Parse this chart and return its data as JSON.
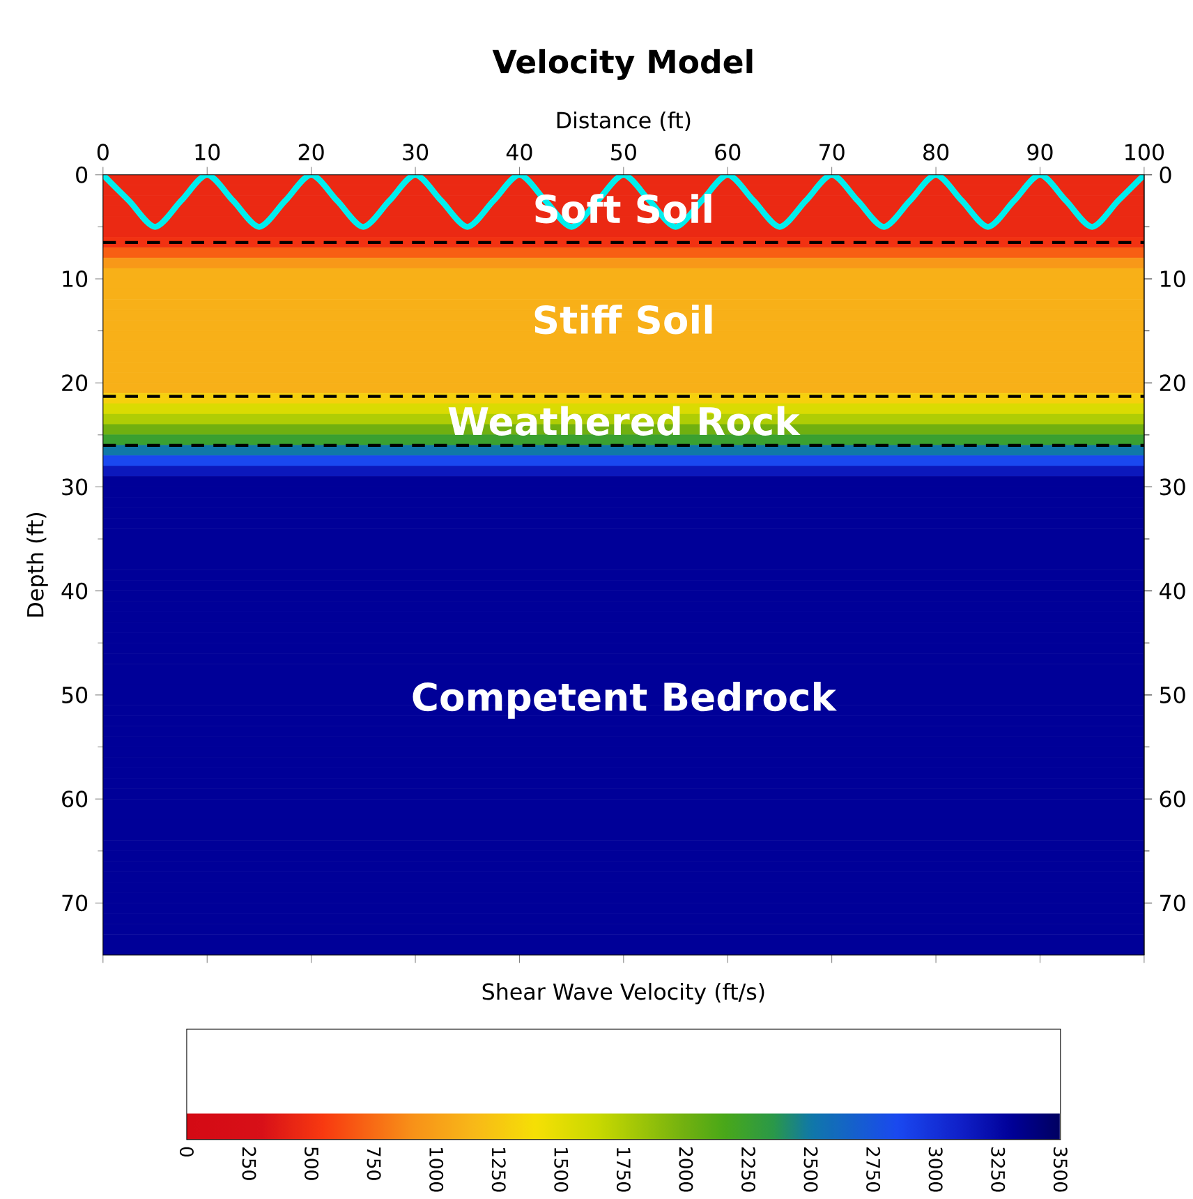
{
  "chart_data": {
    "type": "heatmap",
    "title": "Velocity Model",
    "xlabel": "Distance (ft)",
    "ylabel": "Depth (ft)",
    "clabel": "Shear Wave Velocity (ft/s)",
    "xlim": [
      0,
      100
    ],
    "xticks": [
      0,
      10,
      20,
      30,
      40,
      50,
      60,
      70,
      80,
      90,
      100
    ],
    "ylim": [
      75,
      0
    ],
    "yticks": [
      0,
      10,
      20,
      30,
      40,
      50,
      60,
      70
    ],
    "y2lim": [
      75,
      0
    ],
    "y2ticks": [
      0,
      10,
      20,
      30,
      40,
      50,
      60,
      70
    ],
    "clim": [
      0,
      3500
    ],
    "cticks": [
      0,
      250,
      500,
      750,
      1000,
      1250,
      1500,
      1750,
      2000,
      2250,
      2500,
      2750,
      3000,
      3250,
      3500
    ],
    "cells": [
      [
        450
      ],
      [
        450
      ],
      [
        450
      ],
      [
        450
      ],
      [
        450
      ],
      [
        450
      ],
      [
        500
      ],
      [
        700
      ],
      [
        950
      ],
      [
        1100
      ],
      [
        1100
      ],
      [
        1100
      ],
      [
        1100
      ],
      [
        1100
      ],
      [
        1100
      ],
      [
        1100
      ],
      [
        1100
      ],
      [
        1100
      ],
      [
        1100
      ],
      [
        1100
      ],
      [
        1100
      ],
      [
        1300
      ],
      [
        1550
      ],
      [
        1750
      ],
      [
        2000
      ],
      [
        2250
      ],
      [
        2500
      ],
      [
        2850
      ],
      [
        3150
      ],
      [
        3300
      ],
      [
        3300
      ],
      [
        3300
      ],
      [
        3300
      ],
      [
        3300
      ],
      [
        3300
      ],
      [
        3300
      ],
      [
        3300
      ],
      [
        3300
      ],
      [
        3300
      ],
      [
        3300
      ],
      [
        3300
      ],
      [
        3300
      ],
      [
        3300
      ],
      [
        3300
      ],
      [
        3300
      ],
      [
        3300
      ],
      [
        3300
      ],
      [
        3300
      ],
      [
        3300
      ],
      [
        3300
      ],
      [
        3300
      ],
      [
        3300
      ],
      [
        3300
      ],
      [
        3300
      ],
      [
        3300
      ],
      [
        3300
      ],
      [
        3300
      ],
      [
        3300
      ],
      [
        3300
      ],
      [
        3300
      ],
      [
        3300
      ],
      [
        3300
      ],
      [
        3300
      ],
      [
        3300
      ],
      [
        3300
      ],
      [
        3300
      ],
      [
        3300
      ],
      [
        3300
      ],
      [
        3300
      ],
      [
        3300
      ],
      [
        3300
      ],
      [
        3300
      ],
      [
        3300
      ],
      [
        3300
      ],
      [
        3300
      ]
    ],
    "series": [
      {
        "type": "line",
        "color": "#00eeee",
        "x": [
          0,
          2.5,
          5,
          7.5,
          10,
          12.5,
          15,
          17.5,
          20,
          22.5,
          25,
          27.5,
          30,
          32.5,
          35,
          37.5,
          40,
          42.5,
          45,
          47.5,
          50,
          52.5,
          55,
          57.5,
          60,
          62.5,
          65,
          67.5,
          70,
          72.5,
          75,
          77.5,
          80,
          82.5,
          85,
          87.5,
          90,
          92.5,
          95,
          97.5,
          100
        ],
        "values": [
          0,
          2.5,
          5,
          2.5,
          0,
          2.5,
          5,
          2.5,
          0,
          2.5,
          5,
          2.5,
          0,
          2.5,
          5,
          2.5,
          0,
          2.5,
          5,
          2.5,
          0,
          2.5,
          5,
          2.5,
          0,
          2.5,
          5,
          2.5,
          0,
          2.5,
          5,
          2.5,
          0,
          2.5,
          5,
          2.5,
          0,
          2.5,
          5,
          2.5,
          0
        ]
      }
    ],
    "ref_lines": [
      {
        "axis": "y",
        "value": 6.5,
        "color": "#000000",
        "line_style": "dashed"
      },
      {
        "axis": "y",
        "value": 21.3,
        "color": "#000000",
        "line_style": "dashed"
      },
      {
        "axis": "y",
        "value": 26,
        "color": "#000000",
        "line_style": "dashed"
      }
    ],
    "annotations": [
      "Soft Soil",
      "Stiff Soil",
      "Weathered Rock",
      "Competent Bedrock"
    ],
    "grid": false
  }
}
